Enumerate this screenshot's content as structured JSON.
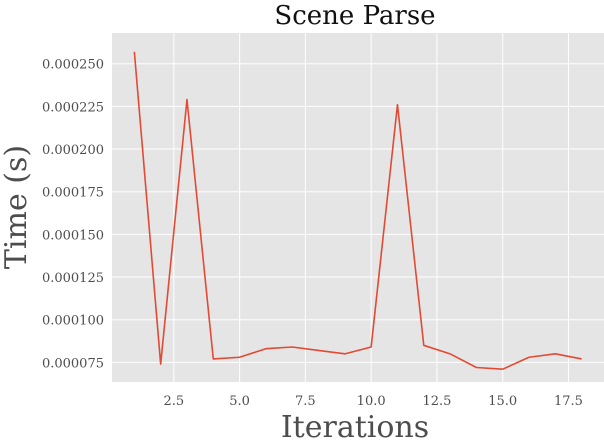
{
  "chart_data": {
    "type": "line",
    "title": "Scene Parse",
    "xlabel": "Iterations",
    "ylabel": "Time (s)",
    "xlim": [
      0.15,
      18.85
    ],
    "ylim": [
      6.35e-05,
      0.000268
    ],
    "x_ticks": [
      2.5,
      5.0,
      7.5,
      10.0,
      12.5,
      15.0,
      17.5
    ],
    "x_tick_labels": [
      "2.5",
      "5.0",
      "7.5",
      "10.0",
      "12.5",
      "15.0",
      "17.5"
    ],
    "y_ticks": [
      7.5e-05,
      0.0001,
      0.000125,
      0.00015,
      0.000175,
      0.0002,
      0.000225,
      0.00025
    ],
    "y_tick_labels": [
      "0.000075",
      "0.000100",
      "0.000125",
      "0.000150",
      "0.000175",
      "0.000200",
      "0.000225",
      "0.000250"
    ],
    "grid": true,
    "series": [
      {
        "color": "#E24A33",
        "x": [
          1,
          2,
          3,
          4,
          5,
          6,
          7,
          8,
          9,
          10,
          11,
          12,
          13,
          14,
          15,
          16,
          17,
          18
        ],
        "y": [
          0.000257,
          7.4e-05,
          0.000229,
          7.7e-05,
          7.8e-05,
          8.3e-05,
          8.4e-05,
          8.2e-05,
          8e-05,
          8.4e-05,
          0.000226,
          8.5e-05,
          8e-05,
          7.2e-05,
          7.1e-05,
          7.8e-05,
          8e-05,
          7.7e-05
        ]
      }
    ]
  },
  "colors": {
    "plot_background": "#E5E5E5",
    "grid": "#FFFFFF",
    "line": "#E24A33"
  }
}
